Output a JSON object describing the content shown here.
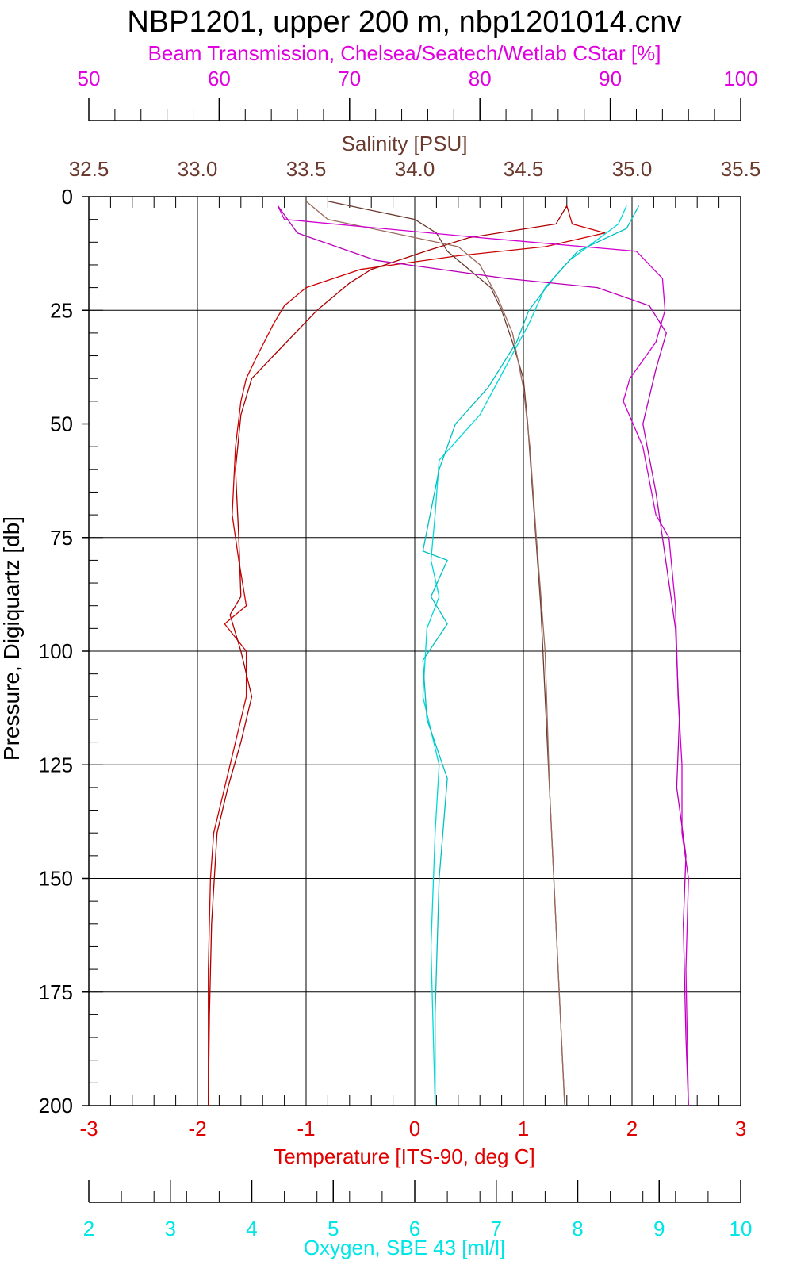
{
  "chart_data": {
    "type": "line",
    "title": "NBP1201, upper 200 m, nbp1201014.cnv",
    "grid": true,
    "y_axis": {
      "label": "Pressure, Digiquartz [db]",
      "ticks": [
        "0",
        "25",
        "50",
        "75",
        "100",
        "125",
        "150",
        "175",
        "200"
      ],
      "range": [
        0,
        200
      ],
      "inverted": true
    },
    "x_axes": [
      {
        "id": "beam",
        "label": "Beam Transmission, Chelsea/Seatech/Wetlab CStar [%]",
        "ticks": [
          "50",
          "60",
          "70",
          "80",
          "90",
          "100"
        ],
        "range": [
          50,
          100
        ],
        "color": "#e000e0",
        "position": "top"
      },
      {
        "id": "salinity",
        "label": "Salinity [PSU]",
        "ticks": [
          "32.5",
          "33.0",
          "33.5",
          "34.0",
          "34.5",
          "35.0",
          "35.5"
        ],
        "range": [
          32.5,
          35.5
        ],
        "color": "#6b3a2e",
        "position": "top"
      },
      {
        "id": "temperature",
        "label": "Temperature [ITS-90, deg C]",
        "ticks": [
          "-3",
          "-2",
          "-1",
          "0",
          "1",
          "2",
          "3"
        ],
        "range": [
          -3,
          3
        ],
        "color": "#e00000",
        "position": "bottom"
      },
      {
        "id": "oxygen",
        "label": "Oxygen, SBE 43 [ml/l]",
        "ticks": [
          "2",
          "3",
          "4",
          "5",
          "6",
          "7",
          "8",
          "9",
          "10"
        ],
        "range": [
          2,
          10
        ],
        "color": "#00e5e5",
        "position": "bottom"
      }
    ],
    "series": [
      {
        "axis": "temperature",
        "color": "#cc0000",
        "pairs": [
          [
            1.4,
            2
          ],
          [
            1.45,
            6
          ],
          [
            1.75,
            8
          ],
          [
            1.2,
            11
          ],
          [
            0.4,
            13
          ],
          [
            -0.5,
            16
          ],
          [
            -1.0,
            20
          ],
          [
            -1.2,
            24
          ],
          [
            -1.3,
            28
          ],
          [
            -1.45,
            35
          ],
          [
            -1.55,
            40
          ],
          [
            -1.6,
            45
          ],
          [
            -1.65,
            55
          ],
          [
            -1.68,
            70
          ],
          [
            -1.62,
            80
          ],
          [
            -1.55,
            90
          ],
          [
            -1.75,
            94
          ],
          [
            -1.55,
            100
          ],
          [
            -1.55,
            110
          ],
          [
            -1.65,
            120
          ],
          [
            -1.75,
            130
          ],
          [
            -1.85,
            140
          ],
          [
            -1.88,
            150
          ],
          [
            -1.9,
            170
          ],
          [
            -1.9,
            200
          ]
        ]
      },
      {
        "axis": "temperature",
        "color": "#aa0000",
        "pairs": [
          [
            1.4,
            2
          ],
          [
            1.3,
            6
          ],
          [
            0.5,
            9
          ],
          [
            0.1,
            12
          ],
          [
            -0.4,
            16
          ],
          [
            -0.6,
            19
          ],
          [
            -0.9,
            25
          ],
          [
            -1.1,
            30
          ],
          [
            -1.3,
            35
          ],
          [
            -1.5,
            40
          ],
          [
            -1.6,
            48
          ],
          [
            -1.65,
            60
          ],
          [
            -1.62,
            75
          ],
          [
            -1.6,
            88
          ],
          [
            -1.7,
            92
          ],
          [
            -1.6,
            100
          ],
          [
            -1.5,
            110
          ],
          [
            -1.6,
            120
          ],
          [
            -1.72,
            130
          ],
          [
            -1.82,
            140
          ],
          [
            -1.87,
            160
          ],
          [
            -1.89,
            180
          ],
          [
            -1.9,
            200
          ]
        ]
      },
      {
        "axis": "salinity",
        "color": "#6b3a2e",
        "pairs": [
          [
            33.6,
            1
          ],
          [
            33.8,
            3
          ],
          [
            34.0,
            5
          ],
          [
            34.1,
            8
          ],
          [
            34.15,
            12
          ],
          [
            34.25,
            16
          ],
          [
            34.35,
            20
          ],
          [
            34.4,
            25
          ],
          [
            34.45,
            32
          ],
          [
            34.5,
            40
          ],
          [
            34.52,
            50
          ],
          [
            34.55,
            70
          ],
          [
            34.58,
            90
          ],
          [
            34.6,
            110
          ],
          [
            34.63,
            140
          ],
          [
            34.66,
            170
          ],
          [
            34.69,
            200
          ]
        ]
      },
      {
        "axis": "salinity",
        "color": "#9a6a5e",
        "pairs": [
          [
            33.5,
            1
          ],
          [
            33.6,
            5
          ],
          [
            33.9,
            8
          ],
          [
            34.2,
            11
          ],
          [
            34.3,
            15
          ],
          [
            34.38,
            22
          ],
          [
            34.45,
            30
          ],
          [
            34.5,
            42
          ],
          [
            34.53,
            55
          ],
          [
            34.56,
            75
          ],
          [
            34.6,
            100
          ],
          [
            34.62,
            130
          ],
          [
            34.65,
            160
          ],
          [
            34.68,
            190
          ],
          [
            34.69,
            200
          ]
        ]
      },
      {
        "axis": "oxygen",
        "color": "#00d8d8",
        "pairs": [
          [
            8.6,
            2
          ],
          [
            8.5,
            6
          ],
          [
            8.2,
            10
          ],
          [
            7.9,
            14
          ],
          [
            7.6,
            20
          ],
          [
            7.4,
            28
          ],
          [
            7.1,
            38
          ],
          [
            6.8,
            48
          ],
          [
            6.3,
            58
          ],
          [
            6.25,
            70
          ],
          [
            6.2,
            80
          ],
          [
            6.3,
            88
          ],
          [
            6.15,
            95
          ],
          [
            6.1,
            110
          ],
          [
            6.3,
            125
          ],
          [
            6.25,
            140
          ],
          [
            6.2,
            165
          ],
          [
            6.25,
            200
          ]
        ]
      },
      {
        "axis": "oxygen",
        "color": "#00c0c0",
        "pairs": [
          [
            8.75,
            2
          ],
          [
            8.6,
            7
          ],
          [
            8.0,
            12
          ],
          [
            7.7,
            18
          ],
          [
            7.4,
            25
          ],
          [
            7.25,
            32
          ],
          [
            6.9,
            42
          ],
          [
            6.5,
            50
          ],
          [
            6.3,
            60
          ],
          [
            6.1,
            78
          ],
          [
            6.4,
            80
          ],
          [
            6.2,
            88
          ],
          [
            6.4,
            94
          ],
          [
            6.1,
            102
          ],
          [
            6.15,
            115
          ],
          [
            6.4,
            128
          ],
          [
            6.3,
            150
          ],
          [
            6.25,
            180
          ],
          [
            6.25,
            200
          ]
        ]
      },
      {
        "axis": "beam",
        "color": "#d000d0",
        "pairs": [
          [
            64.5,
            2
          ],
          [
            65,
            5
          ],
          [
            80,
            9
          ],
          [
            92,
            12
          ],
          [
            94,
            18
          ],
          [
            94.2,
            25
          ],
          [
            93.5,
            32
          ],
          [
            91.5,
            40
          ],
          [
            91,
            45
          ],
          [
            92.5,
            55
          ],
          [
            93.5,
            70
          ],
          [
            94.5,
            75
          ],
          [
            95,
            90
          ],
          [
            95.2,
            110
          ],
          [
            95.5,
            125
          ],
          [
            95.5,
            140
          ],
          [
            96,
            150
          ],
          [
            95.8,
            170
          ],
          [
            96,
            200
          ]
        ]
      },
      {
        "axis": "beam",
        "color": "#b800b8",
        "pairs": [
          [
            64.5,
            2
          ],
          [
            66,
            8
          ],
          [
            72,
            14
          ],
          [
            82,
            18
          ],
          [
            89,
            20
          ],
          [
            93,
            24
          ],
          [
            94.3,
            30
          ],
          [
            93.5,
            38
          ],
          [
            92.5,
            50
          ],
          [
            93.5,
            65
          ],
          [
            94,
            75
          ],
          [
            95,
            95
          ],
          [
            95.3,
            115
          ],
          [
            95.1,
            130
          ],
          [
            95.8,
            145
          ],
          [
            95.6,
            160
          ],
          [
            95.8,
            185
          ],
          [
            96,
            200
          ]
        ]
      }
    ]
  }
}
